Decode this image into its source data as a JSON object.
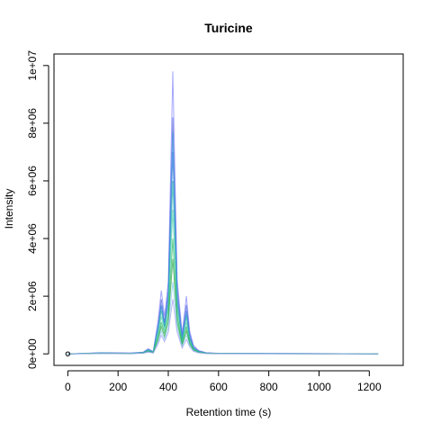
{
  "chart_data": {
    "type": "line",
    "title": "Turicine",
    "xlabel": "Retention time (s)",
    "ylabel": "Intensity",
    "xlim": [
      -55,
      1335
    ],
    "ylim": [
      -400000,
      10400000
    ],
    "x_ticks": [
      0,
      200,
      400,
      600,
      800,
      1000,
      1200
    ],
    "x_tick_labels": [
      "0",
      "200",
      "400",
      "600",
      "800",
      "1000",
      "1200"
    ],
    "y_ticks": [
      0,
      2000000,
      4000000,
      6000000,
      8000000,
      10000000
    ],
    "y_tick_labels": [
      "0e+00",
      "2e+06",
      "4e+06",
      "6e+06",
      "8e+06",
      "1e+07"
    ],
    "grid": false,
    "legend": "none",
    "marker": {
      "x": 0,
      "y": 0
    },
    "colors": [
      "#8080ff",
      "#4a5fd6",
      "#2f6fe0",
      "#3a9ad9",
      "#20b2aa",
      "#4dd0a8",
      "#1db35a",
      "#21a040",
      "#7fc8f0",
      "#9999ee"
    ],
    "series": [
      {
        "x": [
          0,
          130,
          250,
          300,
          320,
          340,
          360,
          372,
          385,
          400,
          418,
          435,
          455,
          472,
          485,
          500,
          520,
          550,
          600,
          800,
          1000,
          1200,
          1235
        ],
        "y": [
          0,
          40000,
          30000,
          60000,
          180000,
          80000,
          1200000,
          2200000,
          1300000,
          2500000,
          9800000,
          2600000,
          700000,
          2000000,
          800000,
          300000,
          120000,
          40000,
          20000,
          15000,
          10000,
          5000,
          0
        ]
      },
      {
        "x": [
          0,
          130,
          250,
          300,
          320,
          340,
          360,
          372,
          385,
          400,
          418,
          435,
          455,
          472,
          485,
          500,
          520,
          550,
          600,
          800,
          1000,
          1200,
          1235
        ],
        "y": [
          0,
          35000,
          25000,
          50000,
          150000,
          70000,
          1000000,
          1900000,
          1100000,
          2200000,
          8200000,
          2300000,
          600000,
          1700000,
          700000,
          250000,
          100000,
          35000,
          18000,
          12000,
          8000,
          4000,
          0
        ]
      },
      {
        "x": [
          0,
          130,
          250,
          300,
          320,
          340,
          360,
          372,
          385,
          400,
          418,
          435,
          455,
          472,
          485,
          500,
          520,
          550,
          600,
          800,
          1000,
          1200,
          1235
        ],
        "y": [
          0,
          30000,
          20000,
          45000,
          130000,
          60000,
          900000,
          1700000,
          1000000,
          2000000,
          7000000,
          2000000,
          520000,
          1500000,
          600000,
          220000,
          90000,
          30000,
          15000,
          10000,
          7000,
          3000,
          0
        ]
      },
      {
        "x": [
          0,
          130,
          250,
          300,
          320,
          340,
          360,
          372,
          385,
          400,
          418,
          435,
          455,
          472,
          485,
          500,
          520,
          550,
          600,
          800,
          1000,
          1200,
          1235
        ],
        "y": [
          0,
          32000,
          22000,
          48000,
          140000,
          65000,
          950000,
          1650000,
          950000,
          1800000,
          7700000,
          1900000,
          500000,
          1400000,
          550000,
          200000,
          85000,
          28000,
          14000,
          10000,
          6000,
          3000,
          0
        ]
      },
      {
        "x": [
          0,
          130,
          250,
          300,
          320,
          340,
          360,
          372,
          385,
          400,
          418,
          435,
          455,
          472,
          485,
          500,
          520,
          550,
          600,
          800,
          1000,
          1200,
          1235
        ],
        "y": [
          0,
          28000,
          18000,
          40000,
          120000,
          55000,
          800000,
          1500000,
          900000,
          1700000,
          6000000,
          1700000,
          450000,
          1300000,
          520000,
          190000,
          80000,
          25000,
          12000,
          9000,
          5000,
          2500,
          0
        ]
      },
      {
        "x": [
          0,
          130,
          250,
          300,
          320,
          340,
          360,
          372,
          385,
          400,
          418,
          435,
          455,
          472,
          485,
          500,
          520,
          550,
          600,
          800,
          1000,
          1200,
          1235
        ],
        "y": [
          0,
          25000,
          16000,
          35000,
          100000,
          50000,
          700000,
          1300000,
          800000,
          1500000,
          5000000,
          1500000,
          400000,
          1100000,
          450000,
          170000,
          70000,
          22000,
          11000,
          8000,
          5000,
          2000,
          0
        ]
      },
      {
        "x": [
          0,
          130,
          250,
          300,
          320,
          340,
          360,
          372,
          385,
          400,
          418,
          435,
          455,
          472,
          485,
          500,
          520,
          550,
          600,
          800,
          1000,
          1200,
          1235
        ],
        "y": [
          0,
          22000,
          14000,
          30000,
          90000,
          45000,
          600000,
          1100000,
          700000,
          1300000,
          4000000,
          1300000,
          350000,
          950000,
          400000,
          150000,
          60000,
          20000,
          10000,
          7000,
          4000,
          2000,
          0
        ]
      },
      {
        "x": [
          0,
          130,
          250,
          300,
          320,
          340,
          360,
          372,
          385,
          400,
          418,
          435,
          455,
          472,
          485,
          500,
          520,
          550,
          600,
          800,
          1000,
          1200,
          1235
        ],
        "y": [
          0,
          20000,
          12000,
          28000,
          80000,
          40000,
          500000,
          950000,
          600000,
          1100000,
          3300000,
          1100000,
          300000,
          800000,
          350000,
          130000,
          55000,
          18000,
          9000,
          6000,
          4000,
          1500,
          0
        ]
      },
      {
        "x": [
          0,
          130,
          250,
          300,
          320,
          340,
          360,
          372,
          385,
          400,
          418,
          435,
          455,
          472,
          485,
          500,
          520,
          550,
          600,
          800,
          1000,
          1200,
          1235
        ],
        "y": [
          0,
          18000,
          11000,
          25000,
          70000,
          35000,
          420000,
          800000,
          500000,
          900000,
          2500000,
          900000,
          250000,
          650000,
          300000,
          110000,
          45000,
          15000,
          8000,
          5000,
          3000,
          1500,
          0
        ]
      },
      {
        "x": [
          0,
          130,
          250,
          300,
          320,
          340,
          360,
          372,
          385,
          400,
          418,
          435,
          455,
          472,
          485,
          500,
          520,
          550,
          600,
          800,
          1000,
          1200,
          1235
        ],
        "y": [
          0,
          15000,
          9000,
          20000,
          60000,
          30000,
          350000,
          650000,
          420000,
          750000,
          1900000,
          750000,
          200000,
          500000,
          250000,
          90000,
          38000,
          12000,
          6000,
          4000,
          2500,
          1000,
          0
        ]
      }
    ]
  }
}
